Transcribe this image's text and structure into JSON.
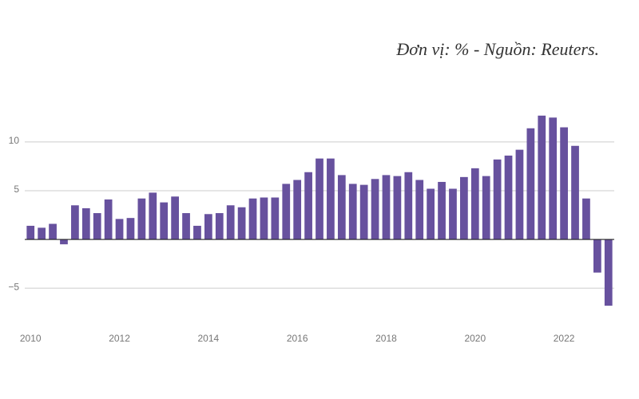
{
  "chart_data": {
    "type": "bar",
    "subtitle": "Đơn vị: % - Nguồn: Reuters.",
    "x": [
      2010,
      2010.25,
      2010.5,
      2010.75,
      2011,
      2011.25,
      2011.5,
      2011.75,
      2012,
      2012.25,
      2012.5,
      2012.75,
      2013,
      2013.25,
      2013.5,
      2013.75,
      2014,
      2014.25,
      2014.5,
      2014.75,
      2015,
      2015.25,
      2015.5,
      2015.75,
      2016,
      2016.25,
      2016.5,
      2016.75,
      2017,
      2017.25,
      2017.5,
      2017.75,
      2018,
      2018.25,
      2018.5,
      2018.75,
      2019,
      2019.25,
      2019.5,
      2019.75,
      2020,
      2020.25,
      2020.5,
      2020.75,
      2021,
      2021.25,
      2021.5,
      2021.75,
      2022,
      2022.25,
      2022.5,
      2022.75,
      2023
    ],
    "values": [
      1.4,
      1.2,
      1.6,
      -0.5,
      3.5,
      3.2,
      2.7,
      4.1,
      2.1,
      2.2,
      4.2,
      4.8,
      3.8,
      4.4,
      2.7,
      1.4,
      2.6,
      2.7,
      3.5,
      3.3,
      4.2,
      4.3,
      4.3,
      5.7,
      6.1,
      6.9,
      8.3,
      8.3,
      6.6,
      5.7,
      5.6,
      6.2,
      6.6,
      6.5,
      6.9,
      6.1,
      5.2,
      5.9,
      5.2,
      6.4,
      7.3,
      6.5,
      8.2,
      8.6,
      9.2,
      11.4,
      12.7,
      12.5,
      11.5,
      9.6,
      4.2,
      -3.4,
      -6.8
    ],
    "color": "#67519e",
    "xlim": [
      2009.87,
      2023.13
    ],
    "xticks": [
      2010,
      2012,
      2014,
      2016,
      2018,
      2020,
      2022
    ],
    "ylim": [
      -9,
      14
    ],
    "yticks": [
      {
        "value": -5,
        "label": "−5"
      },
      5,
      10
    ],
    "grid": true
  }
}
